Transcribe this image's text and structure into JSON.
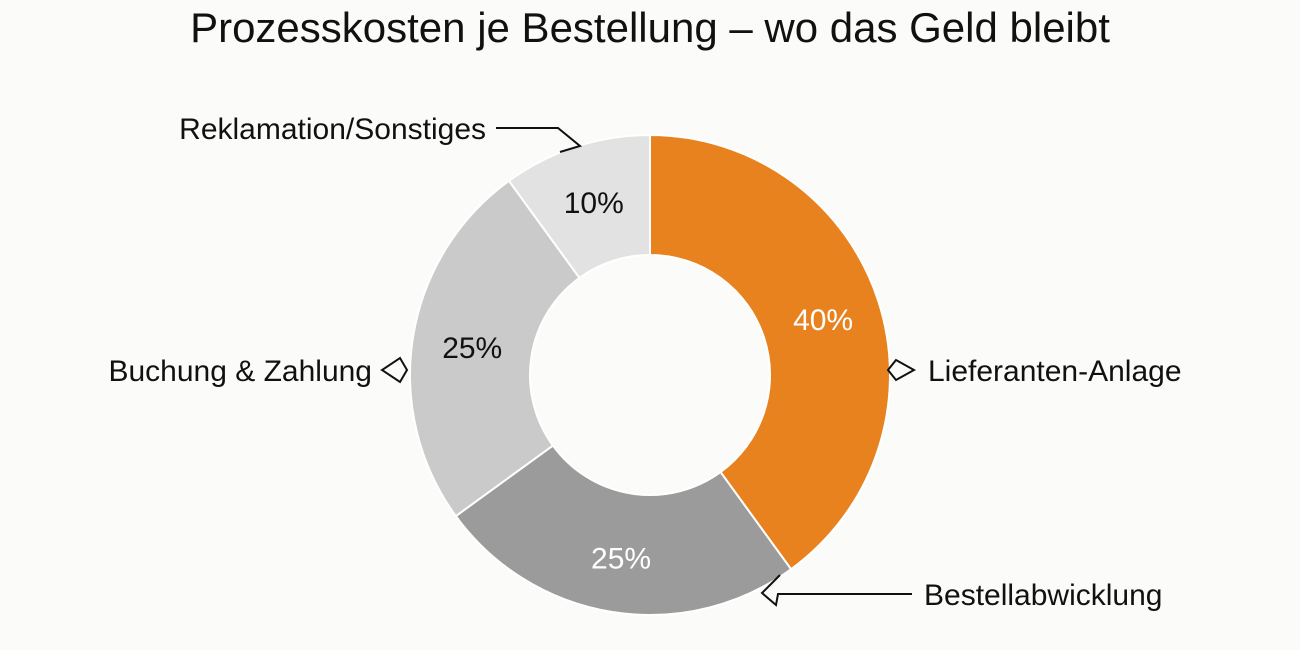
{
  "chart_data": {
    "type": "pie",
    "variant": "donut",
    "title": "Prozesskosten je Bestellung – wo das Geld bleibt",
    "unit": "%",
    "categories": [
      "Lieferanten-Anlage",
      "Bestellabwicklung",
      "Buchung & Zahlung",
      "Reklamation/Sonstiges"
    ],
    "values": [
      40,
      25,
      25,
      10
    ],
    "value_labels": [
      "40%",
      "25%",
      "25%",
      "10%"
    ],
    "colors": [
      "#e8821e",
      "#9b9b9b",
      "#cacaca",
      "#e2e2e2"
    ],
    "value_label_colors": [
      "#ffffff",
      "#ffffff",
      "#111111",
      "#111111"
    ],
    "legend": "none",
    "start_angle": "12 o'clock, clockwise"
  }
}
